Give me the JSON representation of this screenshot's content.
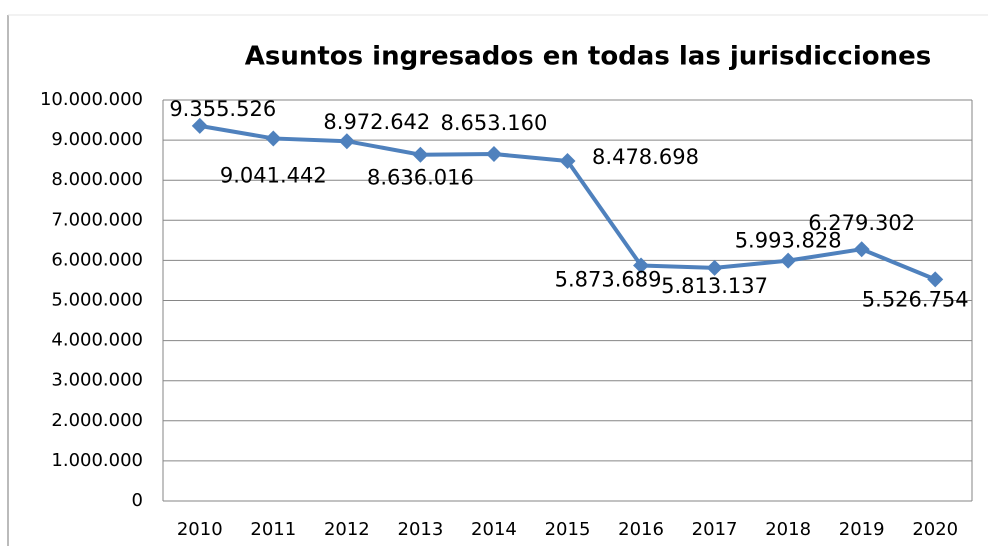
{
  "chart_data": {
    "type": "line",
    "title": "Asuntos ingresados en todas las jurisdicciones",
    "categories": [
      "2010",
      "2011",
      "2012",
      "2013",
      "2014",
      "2015",
      "2016",
      "2017",
      "2018",
      "2019",
      "2020"
    ],
    "series": [
      {
        "name": "Asuntos ingresados",
        "color": "#4f81bd",
        "values": [
          9355526,
          9041442,
          8972642,
          8636016,
          8653160,
          8478698,
          5873689,
          5813137,
          5993828,
          6279302,
          5526754
        ],
        "value_labels": [
          "9.355.526",
          "9.041.442",
          "8.972.642",
          "8.636.016",
          "8.653.160",
          "8.478.698",
          "5.873.689",
          "5.813.137",
          "5.993.828",
          "6.279.302",
          "5.526.754"
        ]
      }
    ],
    "ylim": [
      0,
      10000000
    ],
    "yticks": [
      0,
      {
        "value": 1000000,
        "label": "1.000.000"
      },
      {
        "value": 2000000,
        "label": "2.000.000"
      },
      {
        "value": 3000000,
        "label": "3.000.000"
      },
      {
        "value": 4000000,
        "label": "4.000.000"
      },
      {
        "value": 5000000,
        "label": "5.000.000"
      },
      {
        "value": 6000000,
        "label": "6.000.000"
      },
      {
        "value": 7000000,
        "label": "7.000.000"
      },
      {
        "value": 8000000,
        "label": "8.000.000"
      },
      {
        "value": 9000000,
        "label": "9.000.000"
      },
      {
        "value": 10000000,
        "label": "10.000.000"
      }
    ],
    "grid": true
  }
}
